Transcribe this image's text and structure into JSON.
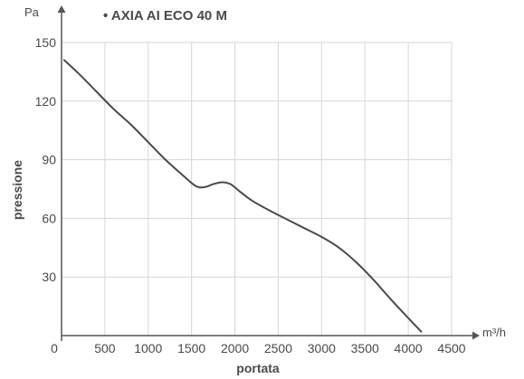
{
  "chart_data": {
    "type": "line",
    "title": "• AXIA AI ECO 40 M",
    "xlabel": "portata",
    "ylabel": "pressione",
    "x_unit": "m³/h",
    "y_unit": "Pa",
    "xlim": [
      0,
      4500
    ],
    "ylim": [
      0,
      150
    ],
    "x_ticks": [
      0,
      500,
      1000,
      1500,
      2000,
      2500,
      3000,
      3500,
      4000,
      4500
    ],
    "x_tick_labels": [
      "0",
      "500",
      "1000",
      "1500",
      "2000",
      "2500",
      "3000",
      "3500",
      "4000",
      "4500"
    ],
    "y_ticks": [
      30,
      60,
      90,
      120,
      150
    ],
    "y_tick_labels": [
      "30",
      "60",
      "90",
      "120",
      "150"
    ],
    "grid": true,
    "series": [
      {
        "x": [
          30,
          200,
          400,
          600,
          800,
          1000,
          1200,
          1400,
          1550,
          1650,
          1750,
          1850,
          1950,
          2050,
          2200,
          2400,
          2600,
          2800,
          3000,
          3200,
          3400,
          3600,
          3800,
          4000,
          4150
        ],
        "y": [
          141,
          134,
          125,
          116,
          108,
          99,
          90,
          82,
          76.5,
          76,
          77.5,
          78.5,
          77.5,
          74,
          69,
          64,
          59.5,
          55,
          50.5,
          45,
          37.5,
          28.5,
          18.5,
          9,
          2
        ],
        "color": "#4a4a4a"
      }
    ]
  }
}
